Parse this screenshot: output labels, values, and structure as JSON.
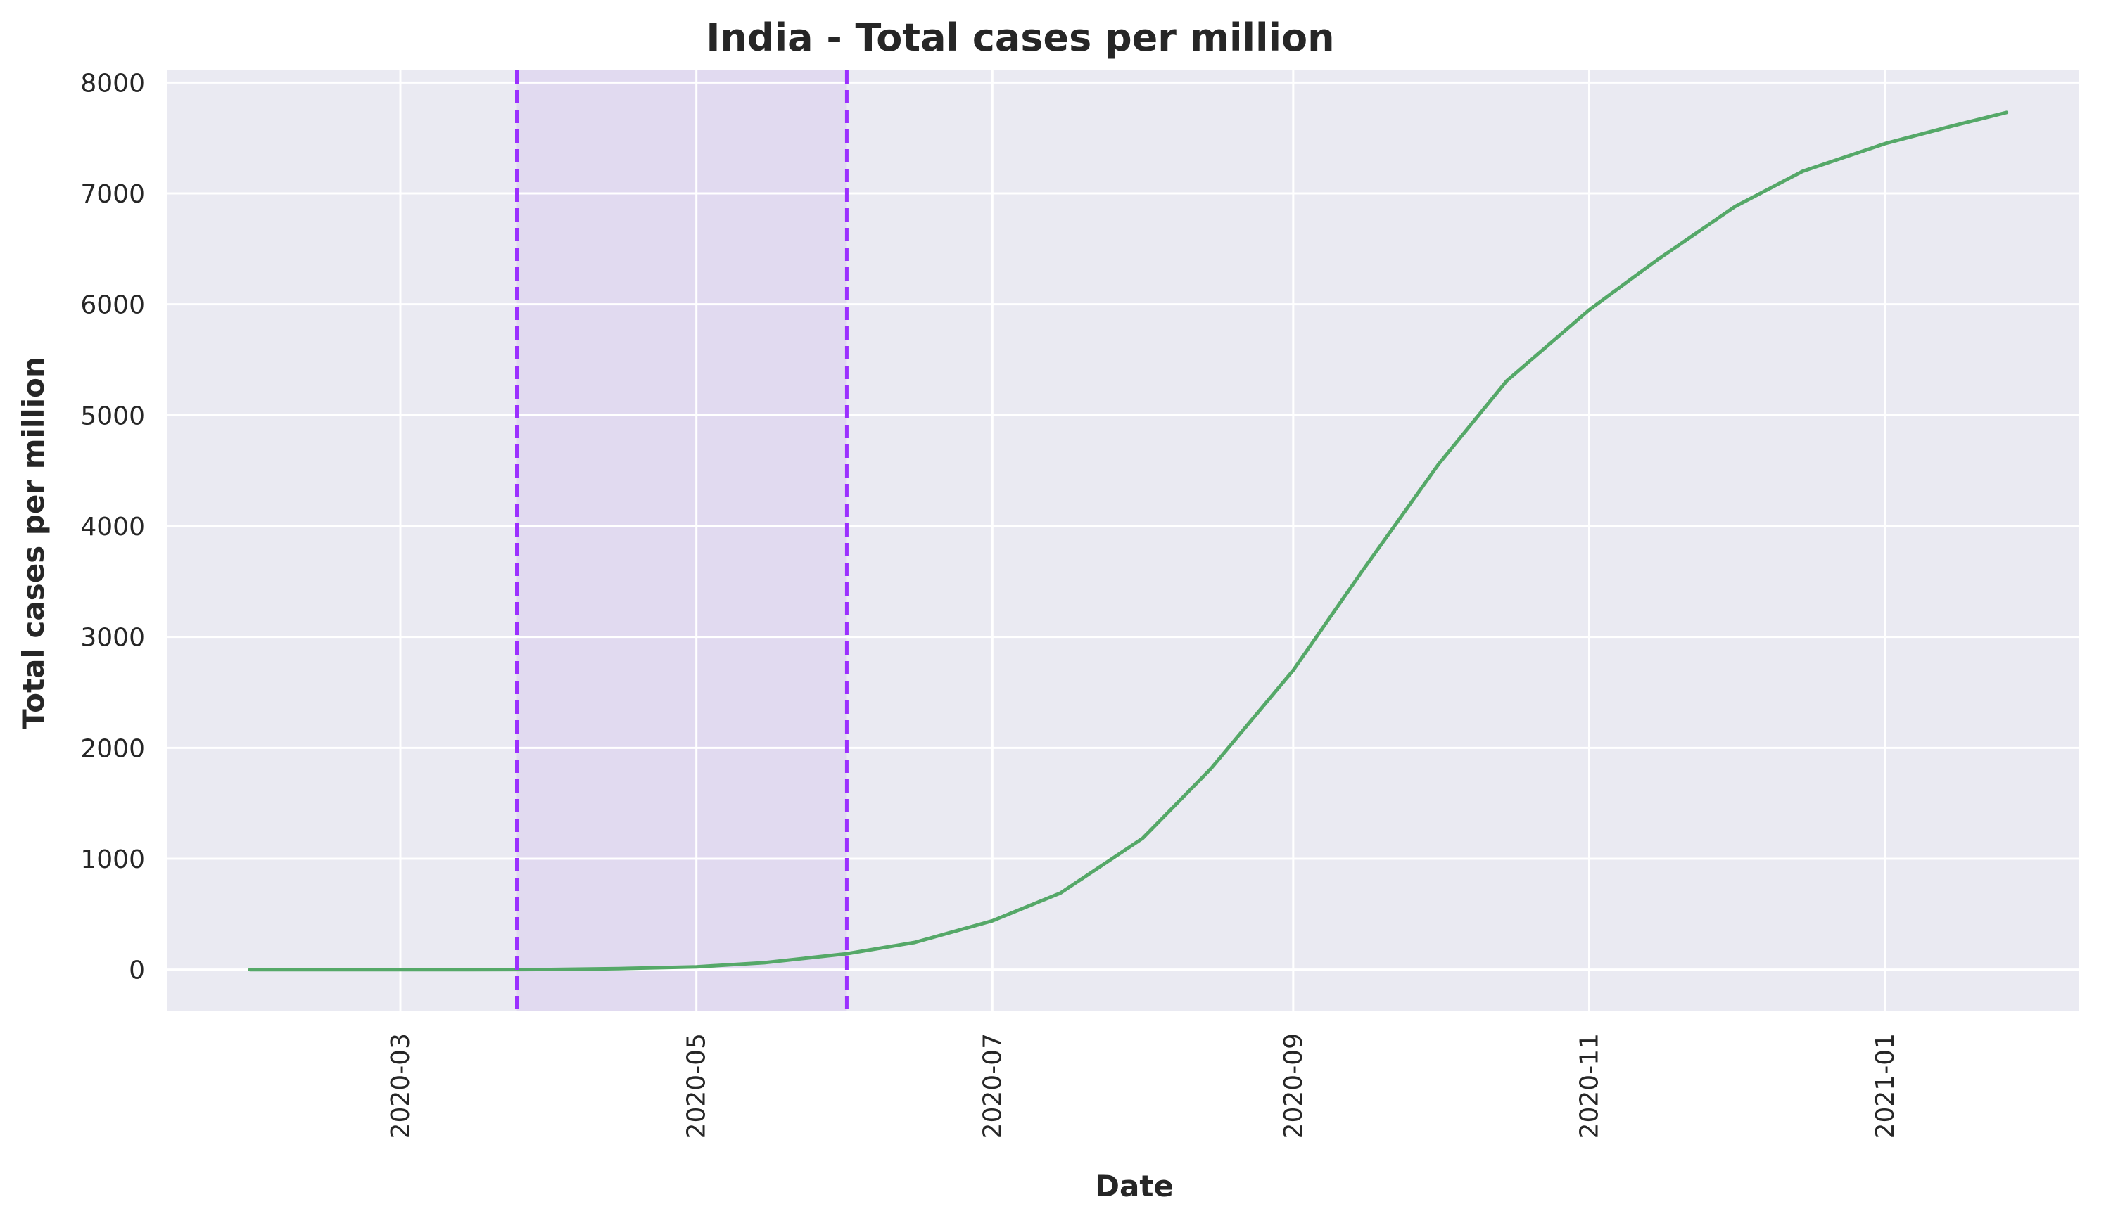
{
  "chart_data": {
    "type": "line",
    "title": "India - Total cases per million",
    "xlabel": "Date",
    "ylabel": "Total cases per million",
    "x_tick_labels": [
      "2020-03",
      "2020-05",
      "2020-07",
      "2020-09",
      "2020-11",
      "2021-01"
    ],
    "y_tick_labels": [
      "0",
      "1000",
      "2000",
      "3000",
      "4000",
      "5000",
      "6000",
      "7000",
      "8000"
    ],
    "xlim": [
      "2020-01-13",
      "2021-02-10"
    ],
    "ylim": [
      -370,
      8110
    ],
    "grid": true,
    "shaded_region": {
      "start": "2020-03-25",
      "end": "2020-06-01"
    },
    "vertical_lines": [
      "2020-03-25",
      "2020-06-01"
    ],
    "series": [
      {
        "x": [
          "2020-01-30",
          "2020-02-15",
          "2020-03-01",
          "2020-03-15",
          "2020-03-25",
          "2020-04-01",
          "2020-04-15",
          "2020-05-01",
          "2020-05-15",
          "2020-06-01",
          "2020-06-15",
          "2020-07-01",
          "2020-07-15",
          "2020-08-01",
          "2020-08-15",
          "2020-09-01",
          "2020-09-15",
          "2020-10-01",
          "2020-10-15",
          "2020-11-01",
          "2020-11-15",
          "2020-12-01",
          "2020-12-15",
          "2021-01-01",
          "2021-01-15",
          "2021-01-26"
        ],
        "y": [
          0,
          0,
          0,
          0,
          0.5,
          1,
          9,
          25,
          62,
          143,
          245,
          440,
          690,
          1185,
          1810,
          2700,
          3580,
          4560,
          5310,
          5950,
          6400,
          6880,
          7200,
          7450,
          7610,
          7730
        ]
      }
    ]
  },
  "colors": {
    "line": "#55a868",
    "vline": "#9b30ff",
    "shade": "#d8c8ee",
    "plot_bg": "#eaeaf2",
    "grid": "#ffffff",
    "text": "#262626"
  }
}
